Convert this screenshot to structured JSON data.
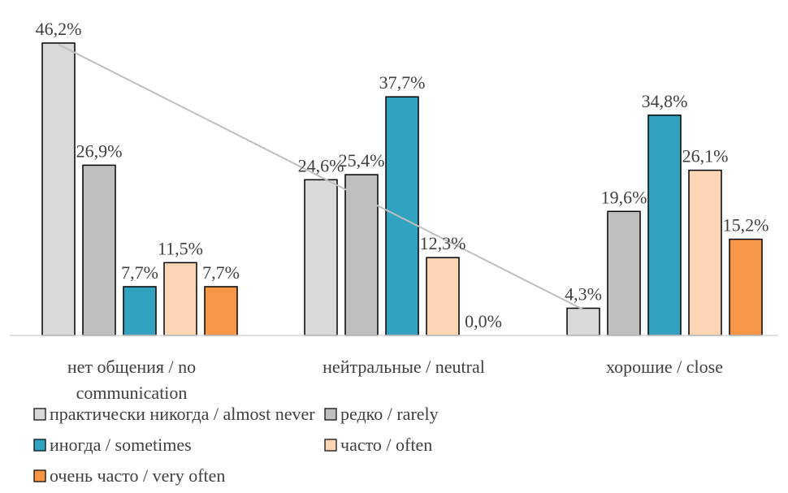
{
  "chart_data": {
    "type": "bar",
    "categories": [
      [
        "нет общения / no",
        "communication"
      ],
      [
        "нейтральные / neutral"
      ],
      [
        "хорошие / close"
      ]
    ],
    "series": [
      {
        "name": "практически никогда / almost never",
        "color": "#d9d9d9",
        "values": [
          46.2,
          24.6,
          4.3
        ],
        "labels": [
          "46,2%",
          "24,6%",
          "4,3%"
        ]
      },
      {
        "name": "редко / rarely",
        "color": "#bfbfbf",
        "values": [
          26.9,
          25.4,
          19.6
        ],
        "labels": [
          "26,9%",
          "25,4%",
          "19,6%"
        ]
      },
      {
        "name": "иногда / sometimes",
        "color": "#31a3c1",
        "values": [
          7.7,
          37.7,
          34.8
        ],
        "labels": [
          "7,7%",
          "37,7%",
          "34,8%"
        ]
      },
      {
        "name": "часто / often",
        "color": "#fcd5b4",
        "values": [
          11.5,
          12.3,
          26.1
        ],
        "labels": [
          "11,5%",
          "12,3%",
          "26,1%"
        ]
      },
      {
        "name": "очень часто / very often",
        "color": "#f79646",
        "values": [
          7.7,
          0.0,
          15.2
        ],
        "labels": [
          "7,7%",
          "0,0%",
          "15,2%"
        ]
      }
    ],
    "trendline": {
      "series": "практически никогда / almost never",
      "color": "#bfbfbf"
    },
    "ylim": [
      0,
      50
    ],
    "grid": false,
    "legend": "bottom",
    "title": "",
    "xlabel": "",
    "ylabel": ""
  }
}
